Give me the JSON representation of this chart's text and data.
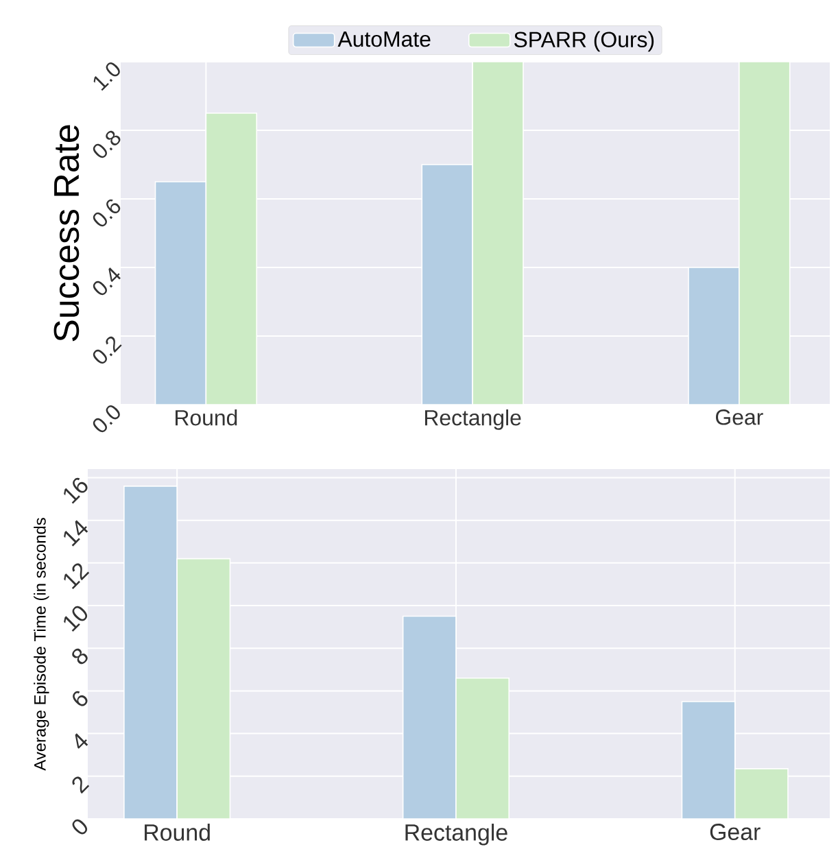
{
  "chart_data": [
    {
      "type": "bar",
      "ylabel": "Success Rate",
      "categories": [
        "Round",
        "Rectangle",
        "Gear"
      ],
      "series": [
        {
          "name": "AutoMate",
          "color": "#b3cde3",
          "values": [
            0.65,
            0.7,
            0.4
          ]
        },
        {
          "name": "SPARR (Ours)",
          "color": "#ccebc5",
          "values": [
            0.85,
            1.0,
            1.0
          ]
        }
      ],
      "ylim": [
        0,
        1.0
      ],
      "yticks": [
        {
          "value": 0,
          "label": "0.0"
        },
        0.2,
        0.4,
        0.6,
        0.8,
        {
          "value": 1.0,
          "label": "1.0"
        }
      ],
      "grid": true,
      "legend": "top"
    },
    {
      "type": "bar",
      "ylabel": "Average Episode Time (in seconds",
      "categories": [
        "Round",
        "Rectangle",
        "Gear"
      ],
      "series": [
        {
          "color": "#b3cde3",
          "values": [
            15.6,
            9.5,
            5.5
          ]
        },
        {
          "color": "#ccebc5",
          "values": [
            12.2,
            6.6,
            2.35
          ]
        }
      ],
      "ylim": [
        0,
        16.4
      ],
      "yticks": [
        0,
        2,
        4,
        6,
        8,
        10,
        12,
        14,
        16
      ],
      "grid": true
    }
  ]
}
